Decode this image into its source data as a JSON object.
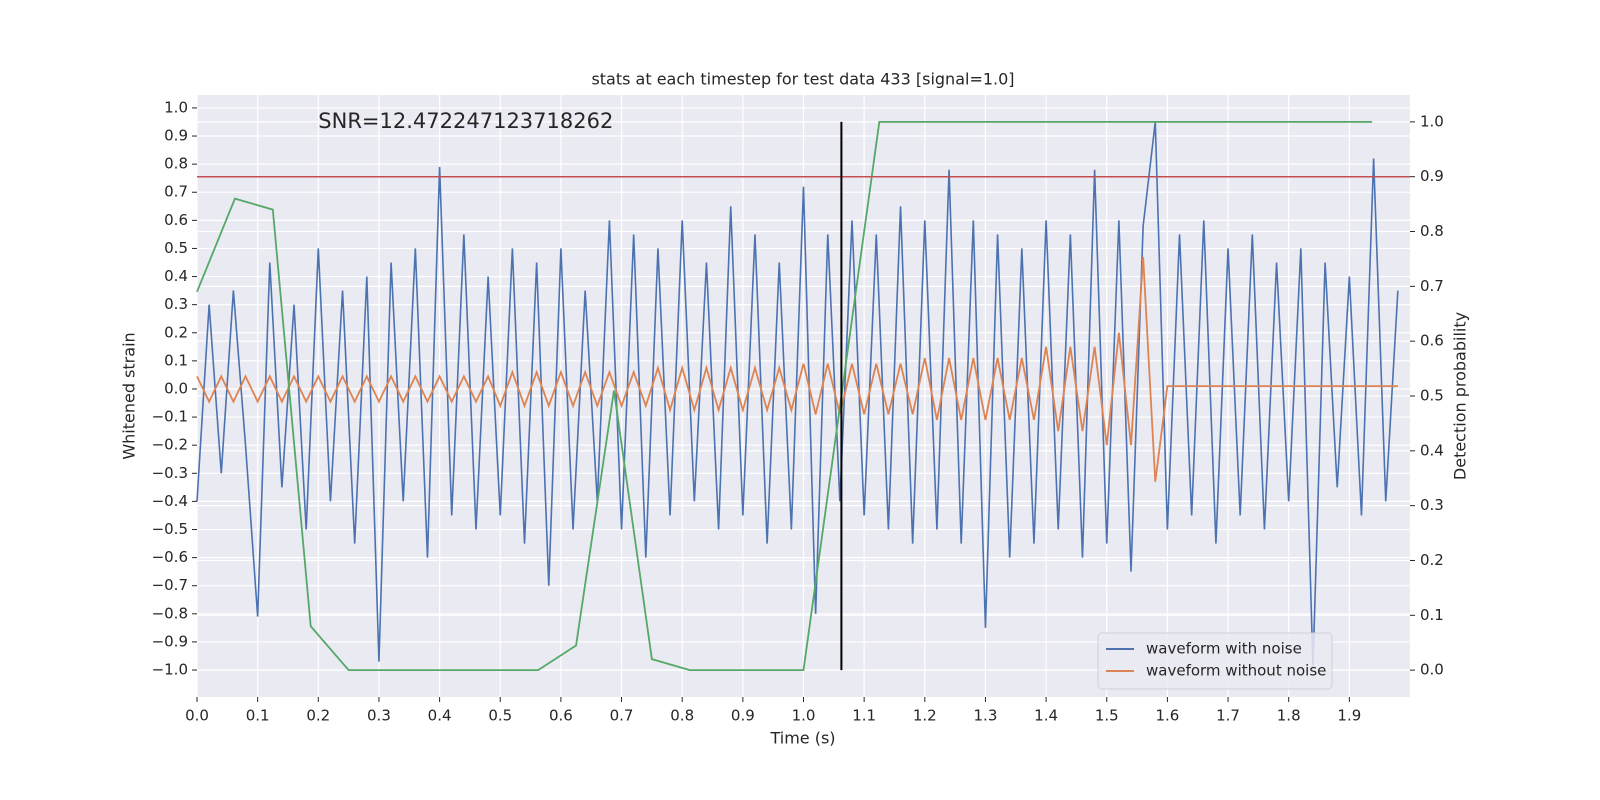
{
  "chart_data": {
    "type": "line",
    "title": "stats at each timestep for test data 433 [signal=1.0]",
    "x_label": "Time (s)",
    "y_label": "Whitened strain",
    "y2_label": "Detection probability",
    "annotation": {
      "text": "SNR=12.472247123718262",
      "x": 0.2,
      "y": 0.95
    },
    "x": [
      0,
      0.02,
      0.04,
      0.06,
      0.08,
      0.1,
      0.12,
      0.14,
      0.16,
      0.18,
      0.2,
      0.22,
      0.24,
      0.26,
      0.28,
      0.3,
      0.32,
      0.34,
      0.36,
      0.38,
      0.4,
      0.42,
      0.44,
      0.46,
      0.48,
      0.5,
      0.52,
      0.54,
      0.56,
      0.58,
      0.6,
      0.62,
      0.64,
      0.66,
      0.68,
      0.7,
      0.72,
      0.74,
      0.76,
      0.78,
      0.8,
      0.82,
      0.84,
      0.86,
      0.88,
      0.9,
      0.92,
      0.94,
      0.96,
      0.98,
      1.0,
      1.02,
      1.04,
      1.06,
      1.08,
      1.1,
      1.12,
      1.14,
      1.16,
      1.18,
      1.2,
      1.22,
      1.24,
      1.26,
      1.28,
      1.3,
      1.32,
      1.34,
      1.36,
      1.38,
      1.4,
      1.42,
      1.44,
      1.46,
      1.48,
      1.5,
      1.52,
      1.54,
      1.56,
      1.58,
      1.6,
      1.62,
      1.64,
      1.66,
      1.68,
      1.7,
      1.72,
      1.74,
      1.76,
      1.78,
      1.8,
      1.82,
      1.84,
      1.86,
      1.88,
      1.9,
      1.92,
      1.94,
      1.96,
      1.98
    ],
    "series": [
      {
        "name": "waveform with noise",
        "color": "#4c72b0",
        "values": [
          -0.4,
          0.3,
          -0.3,
          0.35,
          -0.2,
          -0.81,
          0.45,
          -0.35,
          0.3,
          -0.5,
          0.5,
          -0.4,
          0.35,
          -0.55,
          0.4,
          -0.97,
          0.45,
          -0.4,
          0.5,
          -0.6,
          0.79,
          -0.45,
          0.55,
          -0.5,
          0.4,
          -0.45,
          0.5,
          -0.55,
          0.45,
          -0.7,
          0.5,
          -0.5,
          0.35,
          -0.4,
          0.6,
          -0.5,
          0.55,
          -0.6,
          0.5,
          -0.45,
          0.6,
          -0.4,
          0.45,
          -0.5,
          0.65,
          -0.45,
          0.55,
          -0.55,
          0.45,
          -0.5,
          0.72,
          -0.8,
          0.55,
          -0.4,
          0.6,
          -0.45,
          0.55,
          -0.5,
          0.65,
          -0.55,
          0.6,
          -0.5,
          0.78,
          -0.55,
          0.6,
          -0.85,
          0.55,
          -0.6,
          0.5,
          -0.55,
          0.6,
          -0.5,
          0.55,
          -0.6,
          0.78,
          -0.55,
          0.6,
          -0.65,
          0.58,
          0.95,
          -0.5,
          0.55,
          -0.45,
          0.6,
          -0.55,
          0.5,
          -0.45,
          0.55,
          -0.5,
          0.45,
          -0.4,
          0.5,
          -0.99,
          0.45,
          -0.35,
          0.4,
          -0.45,
          0.82,
          -0.4,
          0.35
        ]
      },
      {
        "name": "waveform without noise",
        "color": "#dd8452",
        "values": [
          0.045,
          -0.045,
          0.045,
          -0.045,
          0.045,
          -0.045,
          0.045,
          -0.045,
          0.045,
          -0.045,
          0.045,
          -0.045,
          0.045,
          -0.045,
          0.045,
          -0.045,
          0.045,
          -0.045,
          0.045,
          -0.045,
          0.045,
          -0.045,
          0.045,
          -0.045,
          0.045,
          -0.06,
          0.06,
          -0.06,
          0.06,
          -0.06,
          0.06,
          -0.06,
          0.06,
          -0.06,
          0.06,
          -0.06,
          0.06,
          -0.06,
          0.075,
          -0.075,
          0.075,
          -0.075,
          0.075,
          -0.075,
          0.075,
          -0.075,
          0.075,
          -0.075,
          0.075,
          -0.075,
          0.09,
          -0.09,
          0.09,
          -0.09,
          0.09,
          -0.09,
          0.09,
          -0.09,
          0.09,
          -0.09,
          0.11,
          -0.11,
          0.11,
          -0.11,
          0.11,
          -0.11,
          0.11,
          -0.11,
          0.11,
          -0.11,
          0.15,
          -0.15,
          0.15,
          -0.15,
          0.15,
          -0.2,
          0.2,
          -0.2,
          0.47,
          -0.33,
          0.01,
          0.01,
          0.01,
          0.01,
          0.01,
          0.01,
          0.01,
          0.01,
          0.01,
          0.01,
          0.01,
          0.01,
          0.01,
          0.01,
          0.01,
          0.01,
          0.01,
          0.01,
          0.01,
          0.01
        ]
      },
      {
        "axis": "y2",
        "color": "#55a868",
        "x": [
          0,
          0.0625,
          0.125,
          0.1875,
          0.25,
          0.3125,
          0.375,
          0.4375,
          0.5,
          0.5625,
          0.625,
          0.6875,
          0.75,
          0.8125,
          0.875,
          0.9375,
          1.0,
          1.0625,
          1.125,
          1.1875,
          1.25,
          1.3125,
          1.375,
          1.4375,
          1.5,
          1.5625,
          1.625,
          1.6875,
          1.75,
          1.8125,
          1.875,
          1.9375
        ],
        "values": [
          0.69,
          0.86,
          0.84,
          0.08,
          0,
          0,
          0,
          0,
          0,
          0,
          0.045,
          0.51,
          0.02,
          0,
          0,
          0,
          0,
          0.5,
          1.0,
          1.0,
          1.0,
          1.0,
          1.0,
          1.0,
          1.0,
          1.0,
          1.0,
          1.0,
          1.0,
          1.0,
          1.0,
          1.0
        ]
      }
    ],
    "hline": {
      "y2": 0.9,
      "color": "#c44e52"
    },
    "vline": {
      "x": 1.0625,
      "y2range": [
        0,
        1.0
      ],
      "color": "#000000"
    },
    "xlim": [
      0,
      2.0
    ],
    "ylim": [
      -1.096,
      1.046
    ],
    "y2lim": [
      -0.049,
      1.049
    ],
    "xticks": [
      {
        "value": 0,
        "label": "0.0"
      },
      0.1,
      0.2,
      0.3,
      0.4,
      0.5,
      0.6,
      0.7,
      0.8,
      0.9,
      {
        "value": 1,
        "label": "1.0"
      },
      1.1,
      1.2,
      1.3,
      1.4,
      1.5,
      1.6,
      1.7,
      1.8,
      1.9
    ],
    "yticks": [
      {
        "value": -1,
        "label": "−1.0"
      },
      {
        "value": -0.9,
        "label": "−0.9"
      },
      {
        "value": -0.8,
        "label": "−0.8"
      },
      {
        "value": -0.7,
        "label": "−0.7"
      },
      {
        "value": -0.6,
        "label": "−0.6"
      },
      {
        "value": -0.5,
        "label": "−0.5"
      },
      {
        "value": -0.4,
        "label": "−0.4"
      },
      {
        "value": -0.3,
        "label": "−0.3"
      },
      {
        "value": -0.2,
        "label": "−0.2"
      },
      {
        "value": -0.1,
        "label": "−0.1"
      },
      {
        "value": 0,
        "label": "0.0"
      },
      0.1,
      0.2,
      0.3,
      0.4,
      0.5,
      0.6,
      0.7,
      0.8,
      0.9,
      {
        "value": 1,
        "label": "1.0"
      }
    ],
    "y2ticks": [
      {
        "value": 0,
        "label": "0.0"
      },
      0.1,
      0.2,
      0.3,
      0.4,
      0.5,
      0.6,
      0.7,
      0.8,
      0.9,
      {
        "value": 1,
        "label": "1.0"
      }
    ],
    "grid": true,
    "legend": "lower right"
  }
}
